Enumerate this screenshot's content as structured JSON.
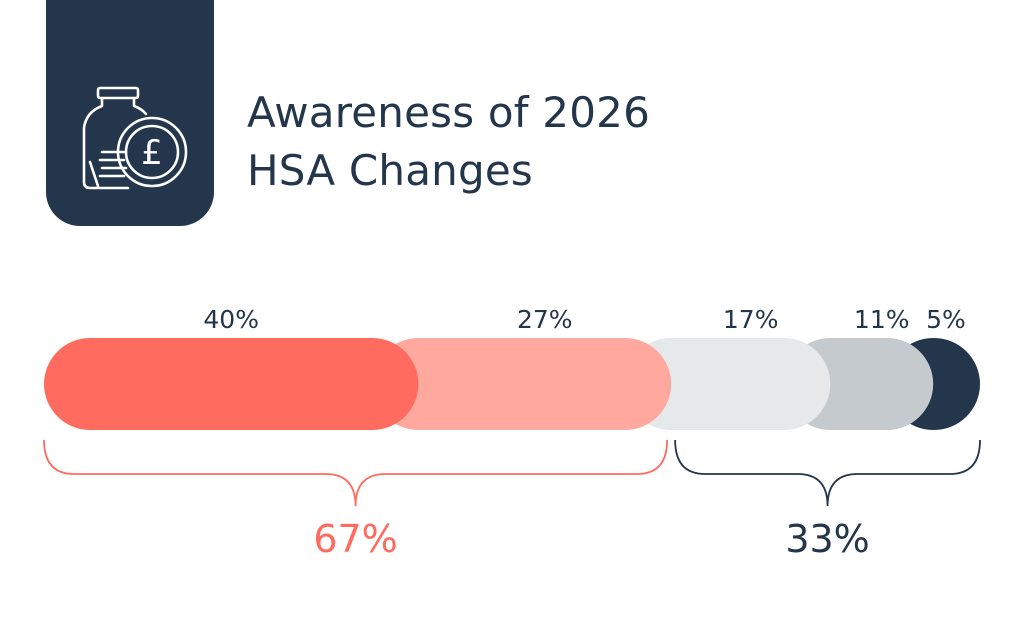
{
  "title_line1": "Awareness of 2026",
  "title_line2": "HSA Changes",
  "icon": "pound-coin-jar-icon",
  "colors": {
    "dark": "#24364b",
    "accent": "#ff6b5e"
  },
  "chart_data": {
    "type": "bar",
    "orientation": "horizontal-stacked",
    "segments": [
      {
        "label": "40%",
        "value": 40,
        "color": "#ff6b5e"
      },
      {
        "label": "27%",
        "value": 27,
        "color": "#ffa89d"
      },
      {
        "label": "17%",
        "value": 17,
        "color": "#e6e8ea"
      },
      {
        "label": "11%",
        "value": 11,
        "color": "#c5cace"
      },
      {
        "label": "5%",
        "value": 5,
        "color": "#24364b"
      }
    ],
    "groups": [
      {
        "label": "67%",
        "value": 67,
        "segments": [
          0,
          1
        ],
        "color": "#ff6b5e"
      },
      {
        "label": "33%",
        "value": 33,
        "segments": [
          2,
          3,
          4
        ],
        "color": "#24364b"
      }
    ]
  }
}
